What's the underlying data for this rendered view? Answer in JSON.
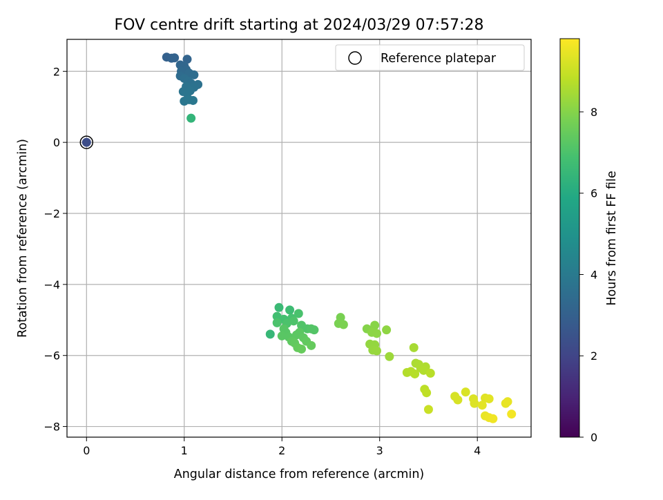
{
  "chart_data": {
    "type": "scatter",
    "title": "FOV centre drift starting at 2024/03/29 07:57:28",
    "xlabel": "Angular distance from reference (arcmin)",
    "ylabel": "Rotation from reference (arcmin)",
    "xlim": [
      -0.2,
      4.55
    ],
    "ylim": [
      -8.3,
      2.9
    ],
    "xticks": [
      0,
      1,
      2,
      3,
      4
    ],
    "xtick_labels": [
      "0",
      "1",
      "2",
      "3",
      "4"
    ],
    "yticks": [
      2,
      0,
      -2,
      -4,
      -6,
      -8
    ],
    "ytick_labels": [
      "2",
      "0",
      "−2",
      "−4",
      "−6",
      "−8"
    ],
    "grid": true,
    "legend": {
      "placement": "top-right",
      "entries": [
        "Reference platepar"
      ]
    },
    "colorbar": {
      "label": "Hours from first FF file",
      "colormap": "viridis",
      "range": [
        0,
        9.8
      ],
      "ticks": [
        0,
        2,
        4,
        6,
        8
      ],
      "tick_labels": [
        "0",
        "2",
        "4",
        "6",
        "8"
      ]
    },
    "reference_point": {
      "x": 0,
      "y": 0,
      "hours": 2.3
    },
    "series": [
      {
        "points": [
          {
            "x": 0.82,
            "y": 2.4,
            "c": 3.0
          },
          {
            "x": 0.87,
            "y": 2.37,
            "c": 3.05
          },
          {
            "x": 0.9,
            "y": 2.38,
            "c": 3.1
          },
          {
            "x": 1.03,
            "y": 2.34,
            "c": 3.15
          },
          {
            "x": 0.96,
            "y": 2.18,
            "c": 3.2
          },
          {
            "x": 1.0,
            "y": 2.15,
            "c": 3.25
          },
          {
            "x": 1.02,
            "y": 2.05,
            "c": 3.3
          },
          {
            "x": 0.97,
            "y": 2.0,
            "c": 3.35
          },
          {
            "x": 1.05,
            "y": 1.95,
            "c": 3.4
          },
          {
            "x": 0.96,
            "y": 1.87,
            "c": 3.45
          },
          {
            "x": 1.1,
            "y": 1.9,
            "c": 3.5
          },
          {
            "x": 1.0,
            "y": 1.8,
            "c": 3.55
          },
          {
            "x": 1.04,
            "y": 1.72,
            "c": 3.6
          },
          {
            "x": 1.07,
            "y": 1.66,
            "c": 3.62
          },
          {
            "x": 1.14,
            "y": 1.63,
            "c": 3.65
          },
          {
            "x": 1.1,
            "y": 1.55,
            "c": 3.7
          },
          {
            "x": 1.02,
            "y": 1.57,
            "c": 3.72
          },
          {
            "x": 1.06,
            "y": 1.45,
            "c": 3.75
          },
          {
            "x": 0.99,
            "y": 1.43,
            "c": 3.78
          },
          {
            "x": 1.03,
            "y": 1.38,
            "c": 3.8
          },
          {
            "x": 1.0,
            "y": 1.16,
            "c": 3.85
          },
          {
            "x": 1.05,
            "y": 1.2,
            "c": 3.87
          },
          {
            "x": 1.09,
            "y": 1.18,
            "c": 3.9
          },
          {
            "x": 1.07,
            "y": 0.68,
            "c": 6.4
          },
          {
            "x": 1.97,
            "y": -4.65,
            "c": 6.6
          },
          {
            "x": 2.08,
            "y": -4.72,
            "c": 6.7
          },
          {
            "x": 1.95,
            "y": -4.9,
            "c": 6.8
          },
          {
            "x": 2.02,
            "y": -4.98,
            "c": 6.85
          },
          {
            "x": 2.1,
            "y": -4.95,
            "c": 6.9
          },
          {
            "x": 2.17,
            "y": -4.82,
            "c": 6.95
          },
          {
            "x": 1.95,
            "y": -5.08,
            "c": 7.0
          },
          {
            "x": 2.05,
            "y": -5.1,
            "c": 7.0
          },
          {
            "x": 2.12,
            "y": -5.03,
            "c": 7.05
          },
          {
            "x": 2.2,
            "y": -5.15,
            "c": 7.1
          },
          {
            "x": 2.26,
            "y": -5.25,
            "c": 7.1
          },
          {
            "x": 2.3,
            "y": -5.25,
            "c": 7.15
          },
          {
            "x": 2.33,
            "y": -5.28,
            "c": 7.15
          },
          {
            "x": 2.02,
            "y": -5.25,
            "c": 7.2
          },
          {
            "x": 2.04,
            "y": -5.35,
            "c": 7.2
          },
          {
            "x": 1.88,
            "y": -5.4,
            "c": 6.5
          },
          {
            "x": 2.0,
            "y": -5.45,
            "c": 7.25
          },
          {
            "x": 2.07,
            "y": -5.48,
            "c": 7.25
          },
          {
            "x": 2.15,
            "y": -5.42,
            "c": 7.3
          },
          {
            "x": 2.18,
            "y": -5.35,
            "c": 7.3
          },
          {
            "x": 2.22,
            "y": -5.5,
            "c": 7.35
          },
          {
            "x": 2.1,
            "y": -5.6,
            "c": 7.35
          },
          {
            "x": 2.13,
            "y": -5.65,
            "c": 7.4
          },
          {
            "x": 2.25,
            "y": -5.6,
            "c": 7.4
          },
          {
            "x": 2.3,
            "y": -5.72,
            "c": 7.45
          },
          {
            "x": 2.16,
            "y": -5.78,
            "c": 7.45
          },
          {
            "x": 2.2,
            "y": -5.82,
            "c": 7.5
          },
          {
            "x": 2.6,
            "y": -4.93,
            "c": 7.8
          },
          {
            "x": 2.58,
            "y": -5.1,
            "c": 7.82
          },
          {
            "x": 2.63,
            "y": -5.13,
            "c": 7.85
          },
          {
            "x": 2.87,
            "y": -5.25,
            "c": 8.0
          },
          {
            "x": 2.95,
            "y": -5.15,
            "c": 8.05
          },
          {
            "x": 2.92,
            "y": -5.35,
            "c": 8.1
          },
          {
            "x": 2.97,
            "y": -5.38,
            "c": 8.12
          },
          {
            "x": 3.07,
            "y": -5.28,
            "c": 8.15
          },
          {
            "x": 2.9,
            "y": -5.68,
            "c": 8.2
          },
          {
            "x": 2.95,
            "y": -5.7,
            "c": 8.22
          },
          {
            "x": 2.93,
            "y": -5.85,
            "c": 8.25
          },
          {
            "x": 2.97,
            "y": -5.87,
            "c": 8.28
          },
          {
            "x": 3.1,
            "y": -6.03,
            "c": 8.35
          },
          {
            "x": 3.35,
            "y": -5.78,
            "c": 8.5
          },
          {
            "x": 3.37,
            "y": -6.22,
            "c": 8.55
          },
          {
            "x": 3.4,
            "y": -6.25,
            "c": 8.58
          },
          {
            "x": 3.42,
            "y": -6.35,
            "c": 8.6
          },
          {
            "x": 3.47,
            "y": -6.32,
            "c": 8.62
          },
          {
            "x": 3.45,
            "y": -6.42,
            "c": 8.65
          },
          {
            "x": 3.28,
            "y": -6.48,
            "c": 8.68
          },
          {
            "x": 3.32,
            "y": -6.45,
            "c": 8.7
          },
          {
            "x": 3.36,
            "y": -6.52,
            "c": 8.72
          },
          {
            "x": 3.52,
            "y": -6.5,
            "c": 8.75
          },
          {
            "x": 3.46,
            "y": -6.95,
            "c": 8.8
          },
          {
            "x": 3.48,
            "y": -7.05,
            "c": 8.85
          },
          {
            "x": 3.5,
            "y": -7.52,
            "c": 9.0
          },
          {
            "x": 3.77,
            "y": -7.15,
            "c": 9.2
          },
          {
            "x": 3.8,
            "y": -7.25,
            "c": 9.22
          },
          {
            "x": 3.88,
            "y": -7.03,
            "c": 9.25
          },
          {
            "x": 3.96,
            "y": -7.22,
            "c": 9.28
          },
          {
            "x": 3.97,
            "y": -7.35,
            "c": 9.3
          },
          {
            "x": 4.08,
            "y": -7.2,
            "c": 9.35
          },
          {
            "x": 4.12,
            "y": -7.22,
            "c": 9.38
          },
          {
            "x": 4.05,
            "y": -7.4,
            "c": 9.4
          },
          {
            "x": 4.29,
            "y": -7.35,
            "c": 9.45
          },
          {
            "x": 4.31,
            "y": -7.3,
            "c": 9.48
          },
          {
            "x": 4.08,
            "y": -7.7,
            "c": 9.5
          },
          {
            "x": 4.12,
            "y": -7.75,
            "c": 9.55
          },
          {
            "x": 4.16,
            "y": -7.78,
            "c": 9.6
          },
          {
            "x": 4.35,
            "y": -7.65,
            "c": 9.65
          }
        ]
      }
    ]
  }
}
